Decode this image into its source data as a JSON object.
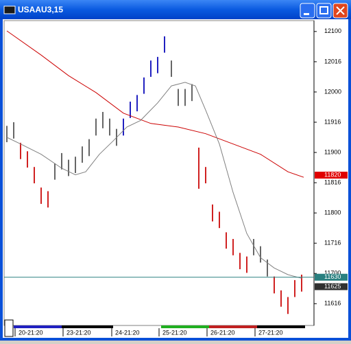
{
  "chart_data": {
    "type": "range-bar",
    "title": "USAAU3,15",
    "xlim": [
      -0.4,
      44.8
    ],
    "ylim": [
      116.14,
      121.18
    ],
    "grid": false,
    "xticks": [
      {
        "value": 1.7,
        "label": "20-21:20"
      },
      {
        "value": 8.7,
        "label": "23-21:20"
      },
      {
        "value": 15.8,
        "label": "24-21:20"
      },
      {
        "value": 22.7,
        "label": "25-21:20"
      },
      {
        "value": 29.7,
        "label": "26-21:20"
      },
      {
        "value": 36.7,
        "label": "27-21:20"
      }
    ],
    "yticks": [
      {
        "value": 121.0,
        "label": "12100"
      },
      {
        "value": 120.5,
        "label": "12016"
      },
      {
        "value": 120.0,
        "label": "12000"
      },
      {
        "value": 119.5,
        "label": "11916"
      },
      {
        "value": 119.0,
        "label": "11900"
      },
      {
        "value": 118.5,
        "label": "11816"
      },
      {
        "value": 118.0,
        "label": "11800"
      },
      {
        "value": 117.5,
        "label": "11716"
      },
      {
        "value": 117.0,
        "label": "11700"
      },
      {
        "value": 116.5,
        "label": "11616"
      }
    ],
    "series": [
      {
        "color": "#666666",
        "x": [
          0,
          1
        ],
        "high": [
          119.44,
          119.5
        ],
        "low": [
          119.17,
          119.23
        ]
      },
      {
        "color": "#d02020",
        "x": [
          2,
          3,
          4,
          5,
          6
        ],
        "high": [
          119.16,
          119.02,
          118.76,
          118.42,
          118.36
        ],
        "low": [
          118.89,
          118.75,
          118.49,
          118.15,
          118.09
        ]
      },
      {
        "color": "#666666",
        "x": [
          7,
          8,
          9,
          10,
          11,
          12,
          13,
          14,
          15,
          16
        ],
        "high": [
          118.82,
          118.99,
          118.88,
          118.93,
          119.1,
          119.22,
          119.56,
          119.67,
          119.56,
          119.39
        ],
        "low": [
          118.55,
          118.72,
          118.61,
          118.66,
          118.83,
          118.94,
          119.28,
          119.4,
          119.28,
          119.11
        ]
      },
      {
        "color": "#2020c0",
        "x": [
          17,
          18,
          19,
          20,
          21,
          22,
          23
        ],
        "high": [
          119.56,
          119.84,
          119.95,
          120.24,
          120.52,
          120.58,
          120.92
        ],
        "low": [
          119.28,
          119.57,
          119.68,
          119.97,
          120.25,
          120.31,
          120.65
        ]
      },
      {
        "color": "#666666",
        "x": [
          24,
          25,
          26,
          27
        ],
        "high": [
          120.52,
          120.05,
          120.05,
          120.13
        ],
        "low": [
          120.25,
          119.77,
          119.77,
          119.85
        ]
      },
      {
        "color": "#d02020",
        "x": [
          28,
          29,
          30,
          31,
          32,
          33,
          34,
          35
        ],
        "high": [
          119.08,
          118.76,
          118.14,
          118.02,
          117.68,
          117.57,
          117.34,
          117.28
        ],
        "low": [
          118.4,
          118.49,
          117.86,
          117.75,
          117.41,
          117.3,
          117.07,
          117.01
        ]
      },
      {
        "color": "#666666",
        "x": [
          36,
          37,
          38
        ],
        "high": [
          117.57,
          117.45,
          117.23
        ],
        "low": [
          117.3,
          117.18,
          116.95
        ]
      },
      {
        "color": "#d02020",
        "x": [
          39,
          40,
          41,
          42,
          43
        ],
        "high": [
          116.95,
          116.72,
          116.61,
          116.89,
          116.98
        ],
        "low": [
          116.67,
          116.45,
          116.33,
          116.61,
          116.7
        ]
      }
    ],
    "lines": [
      {
        "color": "#cc0000",
        "x": [
          0,
          5,
          9,
          13,
          17,
          21,
          25,
          29,
          33,
          37,
          41,
          43.3
        ],
        "values": [
          121.01,
          120.61,
          120.27,
          119.99,
          119.65,
          119.48,
          119.42,
          119.31,
          119.14,
          118.97,
          118.68,
          118.59
        ]
      },
      {
        "color": "#808080",
        "x": [
          0,
          2,
          5,
          8,
          10,
          11.5,
          13.5,
          15.5,
          17.5,
          19.5,
          22,
          24,
          26,
          27.5,
          29,
          31,
          33,
          35,
          37,
          39,
          41,
          43
        ],
        "values": [
          119.25,
          119.14,
          118.97,
          118.74,
          118.63,
          118.68,
          118.97,
          119.19,
          119.42,
          119.53,
          119.82,
          120.1,
          120.16,
          120.1,
          119.7,
          119.14,
          118.34,
          117.66,
          117.26,
          117.09,
          116.98,
          116.92
        ]
      }
    ],
    "markers": [
      {
        "value": 118.625,
        "label": "11820",
        "color": "#e00000",
        "line": false
      },
      {
        "value": 116.9375,
        "label": "11630",
        "color": "#2a8080",
        "line": true
      },
      {
        "value": 116.78125,
        "label": "11625",
        "color": "#303030",
        "line": false
      }
    ]
  }
}
